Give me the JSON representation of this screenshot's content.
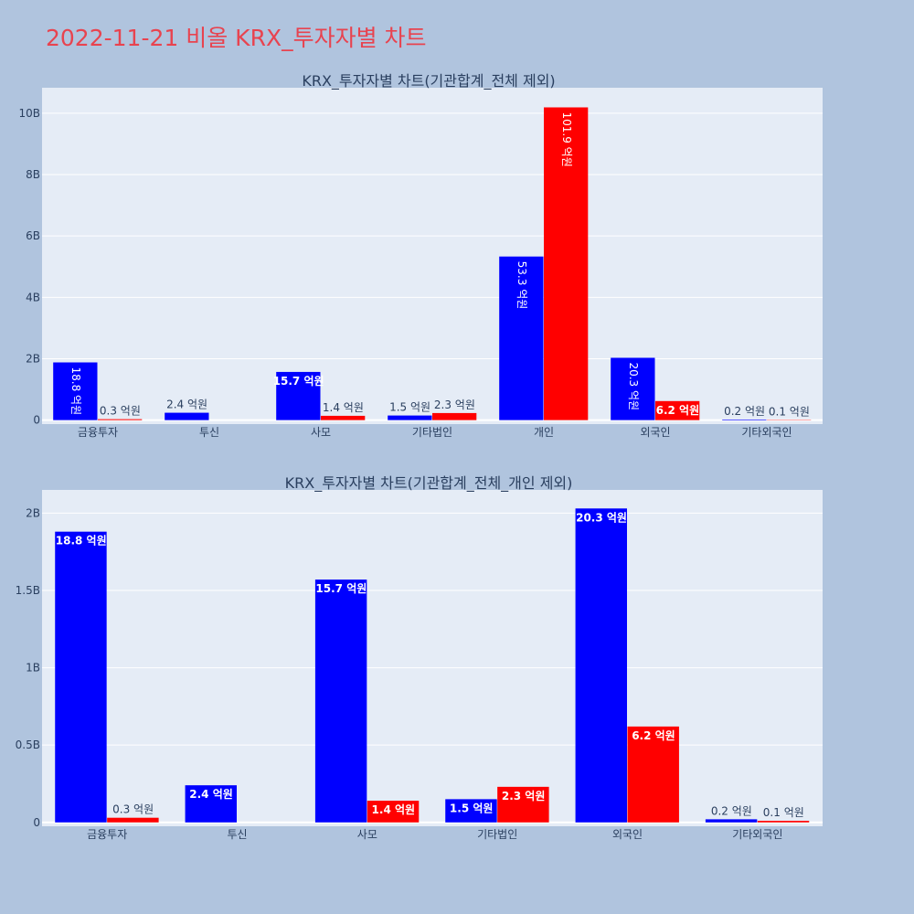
{
  "page": {
    "title": "2022-11-21 비올 KRX_투자자별 차트"
  },
  "colors": {
    "background": "#b0c4de",
    "plot_background": "#e5ecf6",
    "title": "#e8434f",
    "buy": "#0000ff",
    "sell": "#ff0000",
    "text": "#2a3f5f"
  },
  "chart_data": [
    {
      "type": "bar",
      "title": "KRX_투자자별 차트(기관합계_전체 제외)",
      "categories": [
        "금융투자",
        "투신",
        "사모",
        "기타법인",
        "개인",
        "외국인",
        "기타외국인"
      ],
      "series": [
        {
          "color": "#0000ff",
          "values": [
            1880000000,
            240000000,
            1570000000,
            150000000,
            5330000000,
            2030000000,
            20000000
          ],
          "labels": [
            "18.8 억원",
            "2.4 억원",
            "15.7 억원",
            "1.5 억원",
            "53.3 억원",
            "20.3 억원",
            "0.2 억원"
          ]
        },
        {
          "color": "#ff0000",
          "values": [
            30000000,
            0,
            140000000,
            230000000,
            10190000000,
            620000000,
            10000000
          ],
          "labels": [
            "0.3 억원",
            "",
            "1.4 억원",
            "2.3 억원",
            "101.9 억원",
            "6.2 억원",
            "0.1 억원"
          ]
        }
      ],
      "yticks": [
        {
          "value": 0,
          "label": "0"
        },
        {
          "value": 2000000000,
          "label": "2B"
        },
        {
          "value": 4000000000,
          "label": "4B"
        },
        {
          "value": 6000000000,
          "label": "6B"
        },
        {
          "value": 8000000000,
          "label": "8B"
        },
        {
          "value": 10000000000,
          "label": "10B"
        }
      ],
      "ylim": [
        -130000000,
        10830000000
      ],
      "grid": true
    },
    {
      "type": "bar",
      "title": "KRX_투자자별 차트(기관합계_전체_개인 제외)",
      "categories": [
        "금융투자",
        "투신",
        "사모",
        "기타법인",
        "외국인",
        "기타외국인"
      ],
      "series": [
        {
          "color": "#0000ff",
          "values": [
            1880000000,
            240000000,
            1570000000,
            150000000,
            2030000000,
            20000000
          ],
          "labels": [
            "18.8 억원",
            "2.4 억원",
            "15.7 억원",
            "1.5 억원",
            "20.3 억원",
            "0.2 억원"
          ]
        },
        {
          "color": "#ff0000",
          "values": [
            30000000,
            0,
            140000000,
            230000000,
            620000000,
            10000000
          ],
          "labels": [
            "0.3 억원",
            "",
            "1.4 억원",
            "2.3 억원",
            "6.2 억원",
            "0.1 억원"
          ]
        }
      ],
      "yticks": [
        {
          "value": 0,
          "label": "0"
        },
        {
          "value": 500000000,
          "label": "0.5B"
        },
        {
          "value": 1000000000,
          "label": "1B"
        },
        {
          "value": 1500000000,
          "label": "1.5B"
        },
        {
          "value": 2000000000,
          "label": "2B"
        }
      ],
      "ylim": [
        -25000000,
        2150000000
      ],
      "grid": true
    }
  ]
}
